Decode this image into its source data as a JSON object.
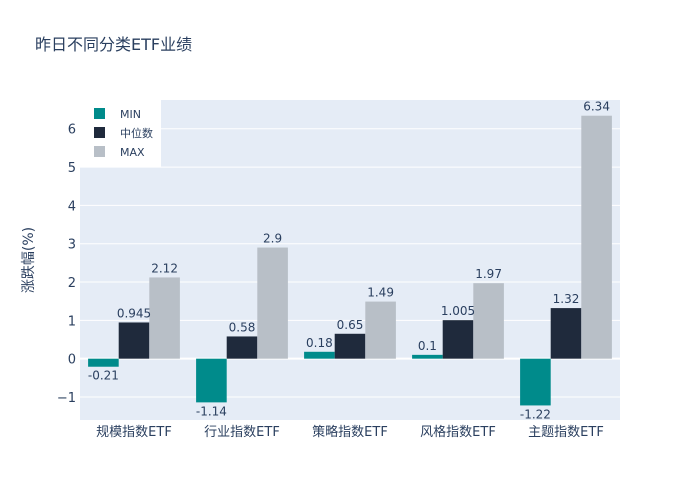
{
  "chart_data": {
    "type": "bar",
    "title": "昨日不同分类ETF业绩",
    "ylabel": "涨跌幅(%)",
    "xlabel": "",
    "ylim": [
      -1.6,
      6.75
    ],
    "yticks": [
      -1,
      0,
      1,
      2,
      3,
      4,
      5,
      6
    ],
    "ytick_labels": [
      "−1",
      "0",
      "1",
      "2",
      "3",
      "4",
      "5",
      "6"
    ],
    "grid": true,
    "legend_position": "top-left",
    "categories": [
      "规模指数ETF",
      "行业指数ETF",
      "策略指数ETF",
      "风格指数ETF",
      "主题指数ETF"
    ],
    "series": [
      {
        "name": "MIN",
        "color": "#008b8b",
        "values": [
          -0.21,
          -1.14,
          0.18,
          0.1,
          -1.22
        ],
        "labels": [
          "-0.21",
          "-1.14",
          "0.18",
          "0.1",
          "-1.22"
        ]
      },
      {
        "name": "中位数",
        "color": "#1f2a3c",
        "values": [
          0.945,
          0.58,
          0.65,
          1.005,
          1.32
        ],
        "labels": [
          "0.945",
          "0.58",
          "0.65",
          "1.005",
          "1.32"
        ]
      },
      {
        "name": "MAX",
        "color": "#b8bfc7",
        "values": [
          2.12,
          2.9,
          1.49,
          1.97,
          6.34
        ],
        "labels": [
          "2.12",
          "2.9",
          "1.49",
          "1.97",
          "6.34"
        ]
      }
    ]
  }
}
